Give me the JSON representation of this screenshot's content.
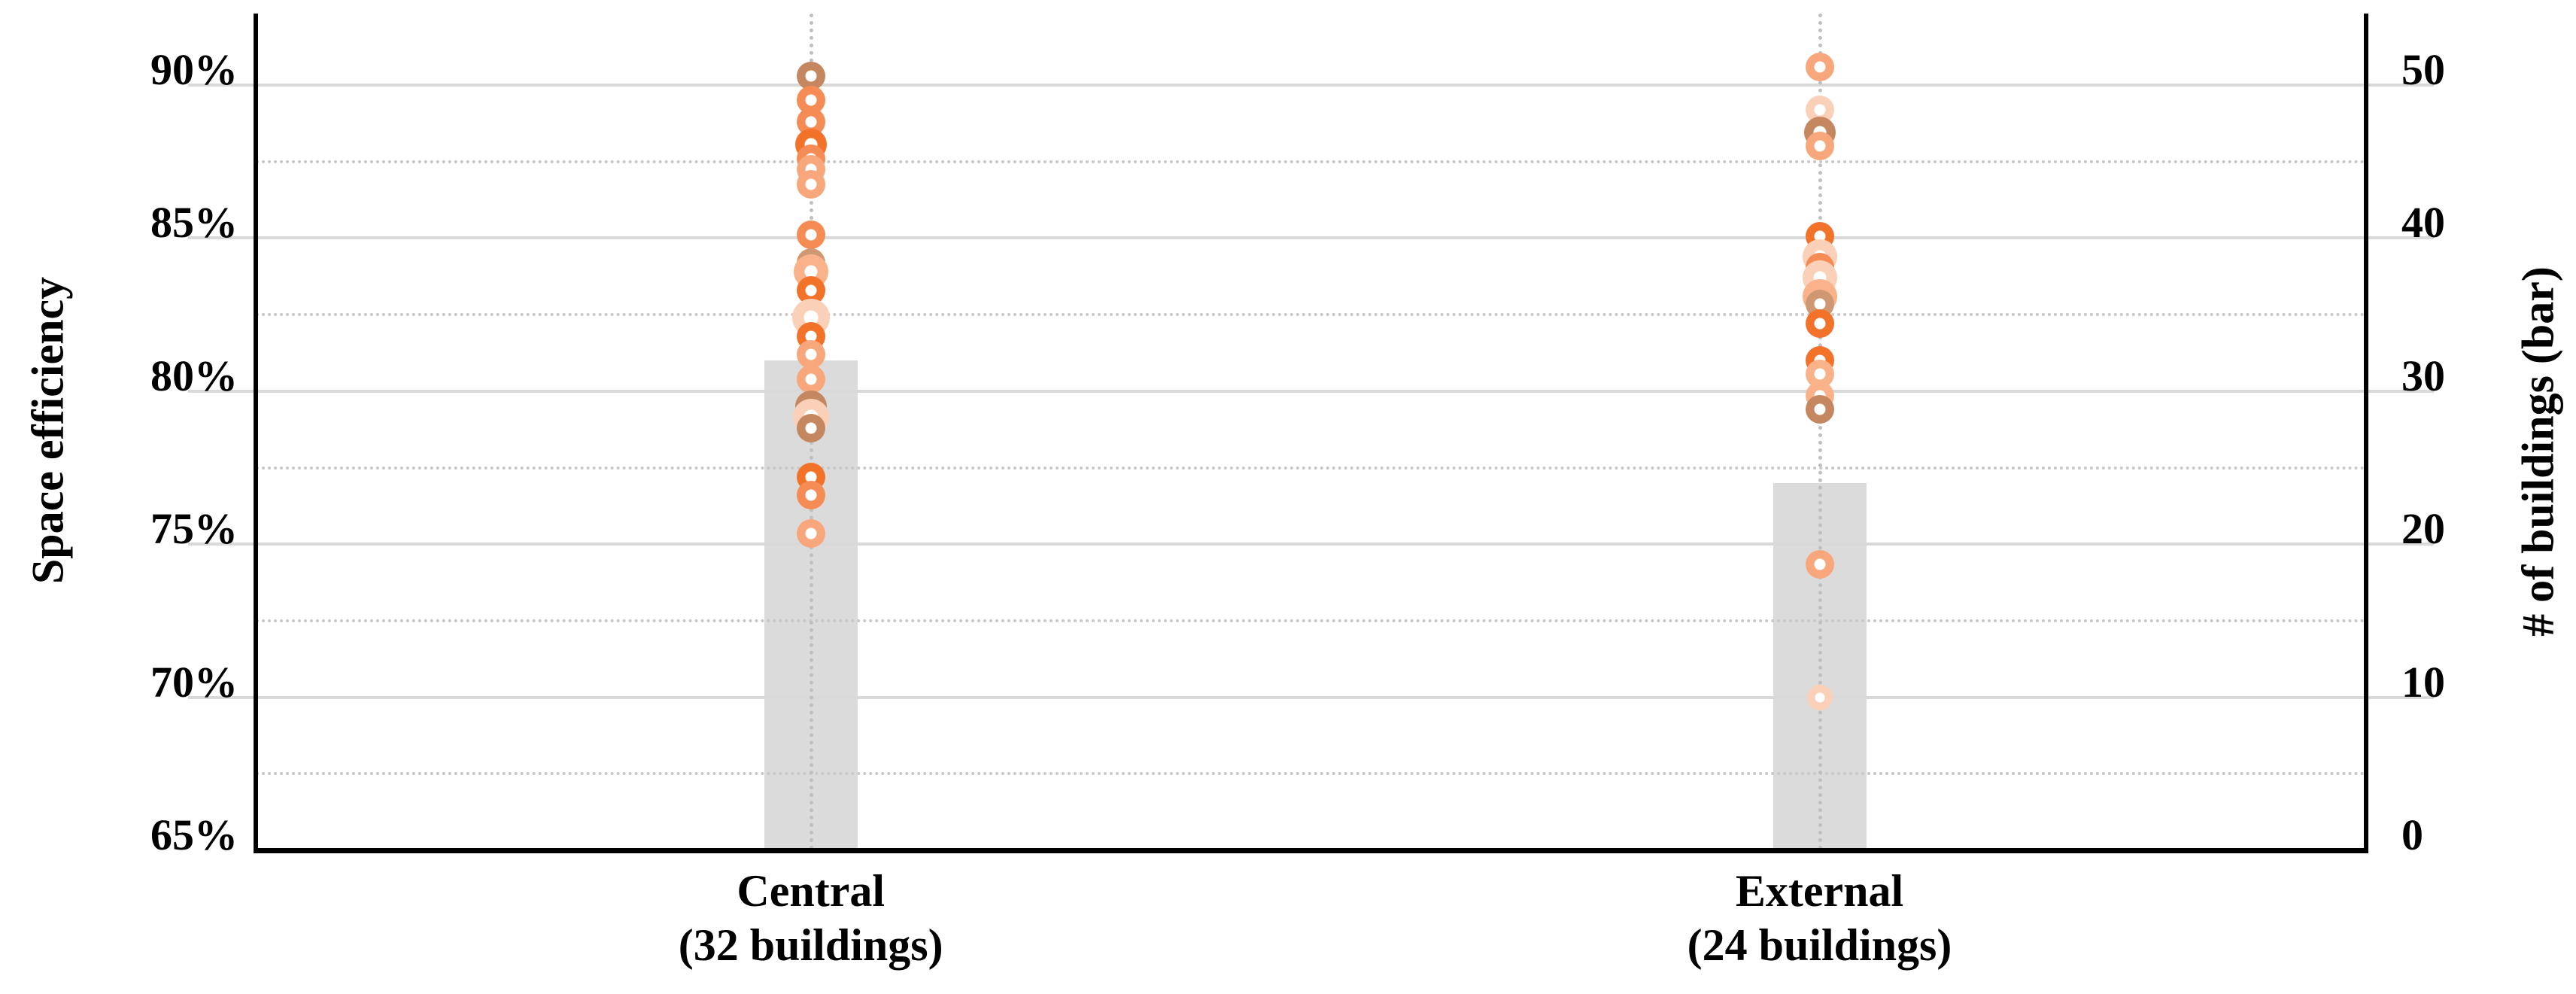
{
  "figure": {
    "left_axis_title": "Space efficiency",
    "right_axis_title": "# of buildings (bar)"
  },
  "chart_data": {
    "type": "combo: bar (# of buildings, right axis) + stacked strip scatter (space efficiency, left axis)",
    "title": "",
    "left_axis": {
      "label": "Space efficiency",
      "tick_labels": [
        "90%",
        "85%",
        "80%",
        "75%",
        "70%",
        "65%"
      ],
      "tick_values": [
        90,
        85,
        80,
        75,
        70,
        65
      ],
      "min": 65,
      "max": 90,
      "minor_step": 2.5,
      "grid": "major solid, minor dotted"
    },
    "right_axis": {
      "label": "# of buildings (bar)",
      "tick_labels": [
        "50",
        "40",
        "30",
        "20",
        "10",
        "0"
      ],
      "tick_values": [
        50,
        40,
        30,
        20,
        10,
        0
      ],
      "min": 0,
      "max": 50
    },
    "categories": [
      {
        "label": "Central",
        "sublabel": "(32 buildings)",
        "n_buildings": 32,
        "bar_value": 32,
        "efficiency_points": [
          {
            "v": 90.3,
            "shade": "darkTan"
          },
          {
            "v": 89.5,
            "shade": "med"
          },
          {
            "v": 88.8,
            "shade": "med"
          },
          {
            "v": 88.05,
            "shade": "vivid",
            "size": 42
          },
          {
            "v": 87.6,
            "shade": "med"
          },
          {
            "v": 87.25,
            "shade": "pale"
          },
          {
            "v": 86.75,
            "shade": "pale"
          },
          {
            "v": 85.1,
            "shade": "med"
          },
          {
            "v": 84.2,
            "shade": "tan"
          },
          {
            "v": 83.9,
            "shade": "paleBright",
            "size": 46
          },
          {
            "v": 83.3,
            "shade": "vivid"
          },
          {
            "v": 82.4,
            "shade": "veryPale",
            "size": 50
          },
          {
            "v": 81.8,
            "shade": "vivid"
          },
          {
            "v": 81.2,
            "shade": "pale"
          },
          {
            "v": 80.4,
            "shade": "pale"
          },
          {
            "v": 79.5,
            "shade": "darkTan",
            "size": 42
          },
          {
            "v": 79.15,
            "shade": "veryPale",
            "size": 48
          },
          {
            "v": 78.8,
            "shade": "darkTan"
          },
          {
            "v": 77.2,
            "shade": "vivid"
          },
          {
            "v": 76.6,
            "shade": "med"
          },
          {
            "v": 75.35,
            "shade": "pale"
          }
        ]
      },
      {
        "label": "External",
        "sublabel": "(24 buildings)",
        "n_buildings": 24,
        "bar_value": 24,
        "efficiency_points": [
          {
            "v": 90.6,
            "shade": "pale"
          },
          {
            "v": 89.2,
            "shade": "veryPale"
          },
          {
            "v": 88.45,
            "shade": "darkTan",
            "size": 42
          },
          {
            "v": 88.0,
            "shade": "pale"
          },
          {
            "v": 85.05,
            "shade": "vivid"
          },
          {
            "v": 84.4,
            "shade": "veryPale",
            "size": 46
          },
          {
            "v": 84.05,
            "shade": "med"
          },
          {
            "v": 83.7,
            "shade": "veryPale",
            "size": 46
          },
          {
            "v": 83.1,
            "shade": "paleBright",
            "size": 46
          },
          {
            "v": 82.85,
            "shade": "tan"
          },
          {
            "v": 82.2,
            "shade": "vivid"
          },
          {
            "v": 81.0,
            "shade": "vivid"
          },
          {
            "v": 80.55,
            "shade": "paleBright"
          },
          {
            "v": 79.85,
            "shade": "paleBright"
          },
          {
            "v": 79.4,
            "shade": "darkTan"
          },
          {
            "v": 74.35,
            "shade": "pale"
          },
          {
            "v": 70.0,
            "shade": "veryPale",
            "size": 34
          }
        ]
      }
    ],
    "palette": {
      "vivid": "#F2722A",
      "med": "#F68C55",
      "pale": "#F8A77C",
      "paleBright": "#FAB28A",
      "veryPale": "#FBD0B8",
      "tan": "#CF9872",
      "darkTan": "#C48760"
    },
    "style_colors": {
      "bar": "#DBDBDB",
      "grid_major": "#D9D9D9",
      "grid_minor": "#C8C8C8",
      "guide_dots": "#BFBFBF",
      "axis": "#000000"
    },
    "legend": "none"
  }
}
